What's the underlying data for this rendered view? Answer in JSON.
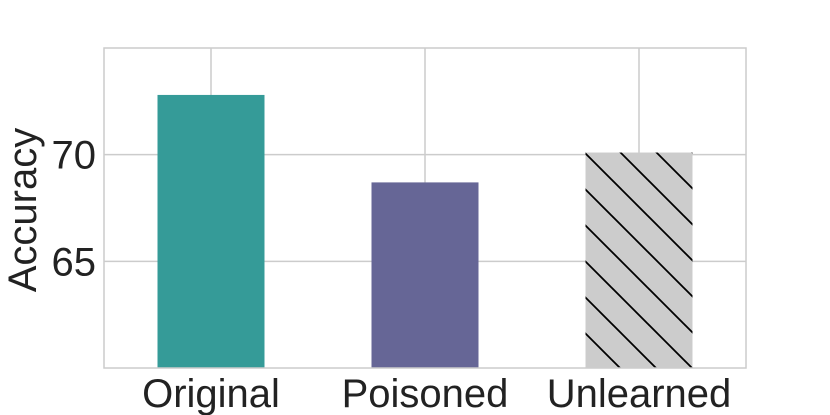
{
  "chart_data": {
    "type": "bar",
    "title": "",
    "xlabel": "",
    "ylabel": "Accuracy",
    "categories": [
      "Original",
      "Poisoned",
      "Unlearned"
    ],
    "values": [
      72.8,
      68.7,
      70.1
    ],
    "ylim": [
      60,
      75
    ],
    "yticks": [
      65,
      70
    ],
    "ytick_labels": [
      "65",
      "70"
    ],
    "grid": true,
    "bar_colors": [
      "#359b98",
      "#666696",
      "#cccccc"
    ],
    "bar_hatch": [
      "none",
      "none",
      "diagonal"
    ]
  }
}
